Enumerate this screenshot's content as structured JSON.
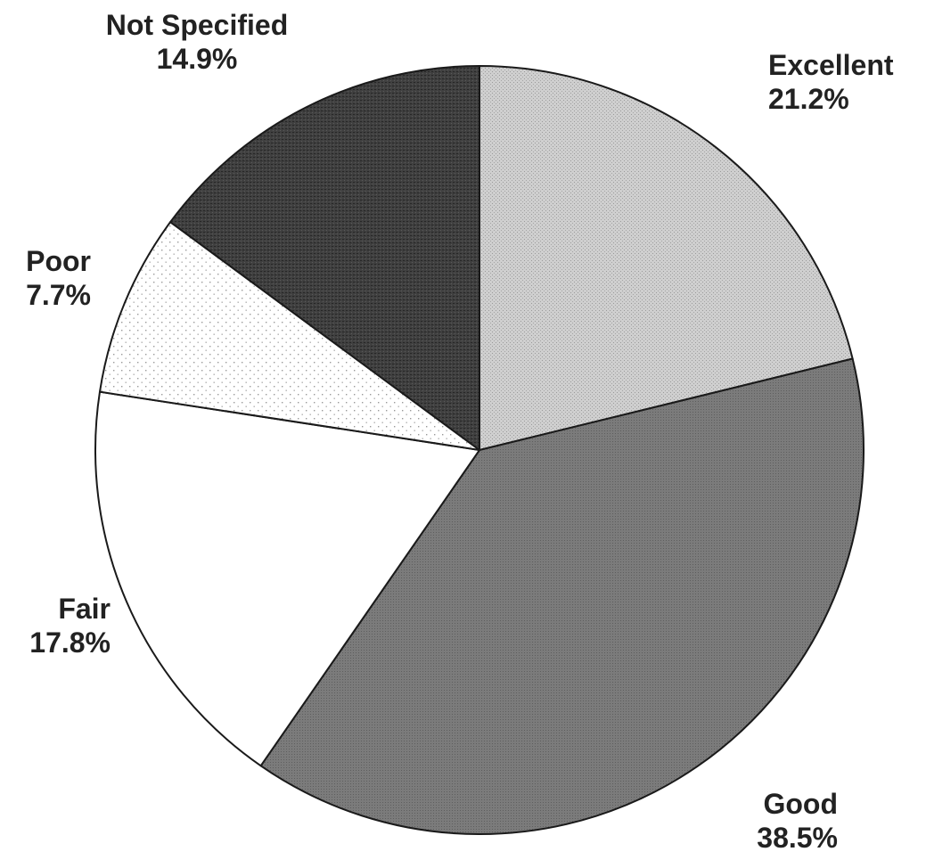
{
  "chart_data": {
    "type": "pie",
    "slices": [
      {
        "label": "Excellent",
        "value": 21.2,
        "value_label": "21.2%",
        "color": "#c4c4c4"
      },
      {
        "label": "Good",
        "value": 38.5,
        "value_label": "38.5%",
        "color": "#777777"
      },
      {
        "label": "Fair",
        "value": 17.8,
        "value_label": "17.8%",
        "color": "#ffffff"
      },
      {
        "label": "Poor",
        "value": 7.7,
        "value_label": "7.7%",
        "color": "#f6f6f6"
      },
      {
        "label": "Not Specified",
        "value": 14.9,
        "value_label": "14.9%",
        "color": "#3c3c3c"
      }
    ],
    "start": "12 o'clock",
    "direction": "clockwise"
  }
}
